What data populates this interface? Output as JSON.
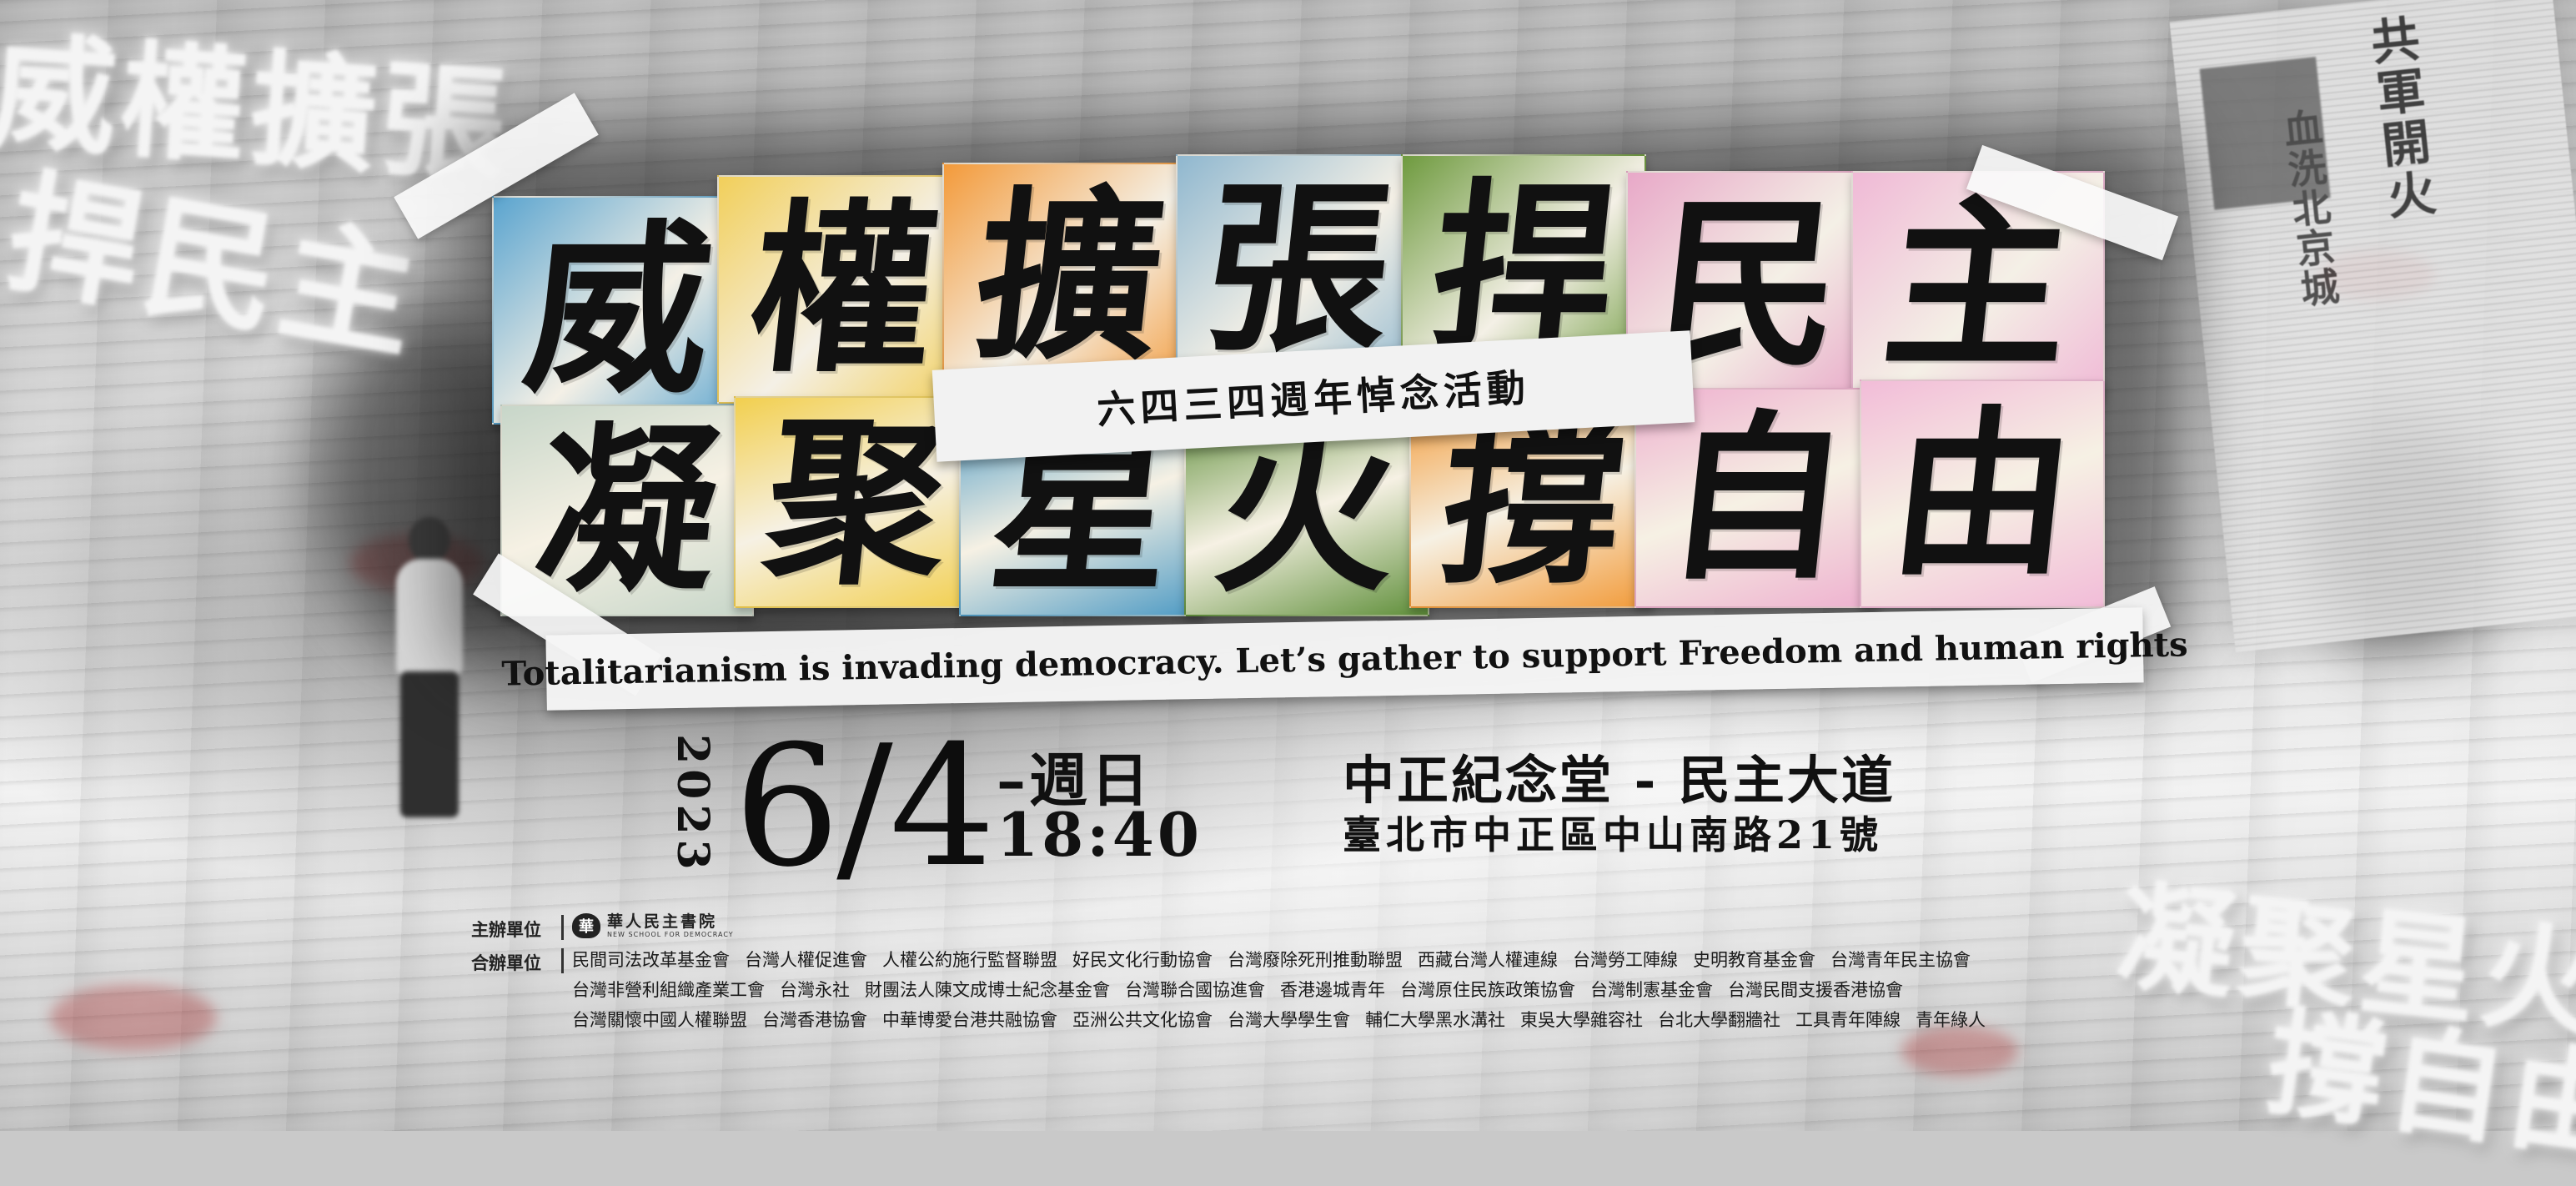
{
  "title_line1": [
    "威",
    "權",
    "擴",
    "張",
    "捍",
    "民",
    "主"
  ],
  "title_line2": [
    "凝",
    "聚",
    "星",
    "火",
    "撐",
    "自",
    "由"
  ],
  "ghost_text": {
    "left_line1": "威權擴張",
    "left_line2": "捍民主",
    "right_line1": "凝聚星火",
    "right_line2": "撐自由"
  },
  "newspaper": {
    "headline": "共軍開火",
    "headline2": "血洗北京城"
  },
  "subtitle": "六四三四週年悼念活動",
  "english_tagline": "Totalitarianism is invading democracy. Let’s gather to support Freedom and human rights",
  "event": {
    "year": "2023",
    "date": "6/4",
    "weekday": "–週日",
    "time": "18:40",
    "venue": "中正紀念堂 - 民主大道",
    "address": "臺北市中正區中山南路21號"
  },
  "host": {
    "label": "主辦單位",
    "logo_mark": "華",
    "name_zh": "華人民主書院",
    "name_en": "NEW SCHOOL FOR DEMOCRACY"
  },
  "co_organizers": {
    "label": "合辦單位",
    "lines": [
      [
        "民間司法改革基金會",
        "台灣人權促進會",
        "人權公約施行監督聯盟",
        "好民文化行動協會",
        "台灣廢除死刑推動聯盟",
        "西藏台灣人權連線",
        "台灣勞工陣線",
        "史明教育基金會",
        "台灣青年民主協會"
      ],
      [
        "台灣非營利組織產業工會",
        "台灣永社",
        "財團法人陳文成博士紀念基金會",
        "台灣聯合國協進會",
        "香港邊城青年",
        "台灣原住民族政策協會",
        "台灣制憲基金會",
        "台灣民間支援香港協會"
      ],
      [
        "台灣關懷中國人權聯盟",
        "台灣香港協會",
        "中華博愛台港共融協會",
        "亞洲公共文化協會",
        "台灣大學學生會",
        "輔仁大學黑水溝社",
        "東吳大學雜容社",
        "台北大學翻牆社",
        "工具青年陣線",
        "青年綠人"
      ]
    ]
  },
  "tile_colors": {
    "row1": [
      "#5aa4cf",
      "#f2cf5a",
      "#f39a3a",
      "#8fb7cf",
      "#6e9a3e",
      "#e8a8c8",
      "#f0b9d6"
    ],
    "row2": [
      "#c7d6c9",
      "#f2cf4e",
      "#4d9ac4",
      "#5f8f3a",
      "#f29a38",
      "#eeb0cf",
      "#f2bcd8"
    ]
  }
}
